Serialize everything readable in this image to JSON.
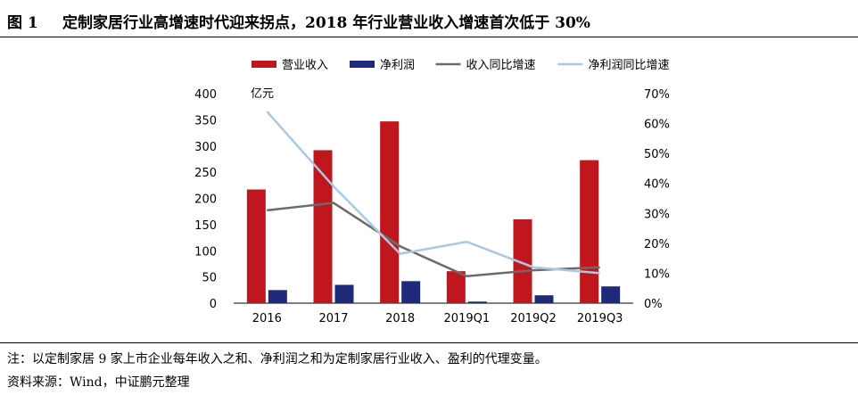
{
  "figure": {
    "label": "图 1",
    "title": "定制家居行业高增速时代迎来拐点，2018 年行业营业收入增速首次低于 30%"
  },
  "notes": {
    "note": "注：以定制家居 9 家上市企业每年收入之和、净利润之和为定制家居行业收入、盈利的代理变量。",
    "source": "资料来源：Wind，中证鹏元整理"
  },
  "chart_data": {
    "type": "bar",
    "categories": [
      "2016",
      "2017",
      "2018",
      "2019Q1",
      "2019Q2",
      "2019Q3"
    ],
    "left_unit": "亿元",
    "ylim_left": [
      0,
      400
    ],
    "yticks_left": [
      "0",
      "50",
      "100",
      "150",
      "200",
      "250",
      "300",
      "350",
      "400"
    ],
    "ylim_right": [
      0,
      70
    ],
    "yticks_right": [
      "0%",
      "10%",
      "20%",
      "30%",
      "40%",
      "50%",
      "60%",
      "70%"
    ],
    "legend_position": "top",
    "series": [
      {
        "name": "营业收入",
        "type": "bar",
        "axis": "left",
        "color": "#c0161d",
        "values": [
          217,
          292,
          347,
          61,
          160,
          273
        ]
      },
      {
        "name": "净利润",
        "type": "bar",
        "axis": "left",
        "color": "#1f2a7a",
        "values": [
          25,
          35,
          42,
          3,
          15,
          32
        ]
      },
      {
        "name": "收入同比增速",
        "type": "line",
        "axis": "right",
        "color": "#6b6b6b",
        "values": [
          31,
          33.5,
          19,
          9,
          11,
          12
        ]
      },
      {
        "name": "净利润同比增速",
        "type": "line",
        "axis": "right",
        "color": "#a9c8e2",
        "values": [
          64,
          39,
          16.5,
          20.5,
          12,
          10
        ]
      }
    ]
  }
}
